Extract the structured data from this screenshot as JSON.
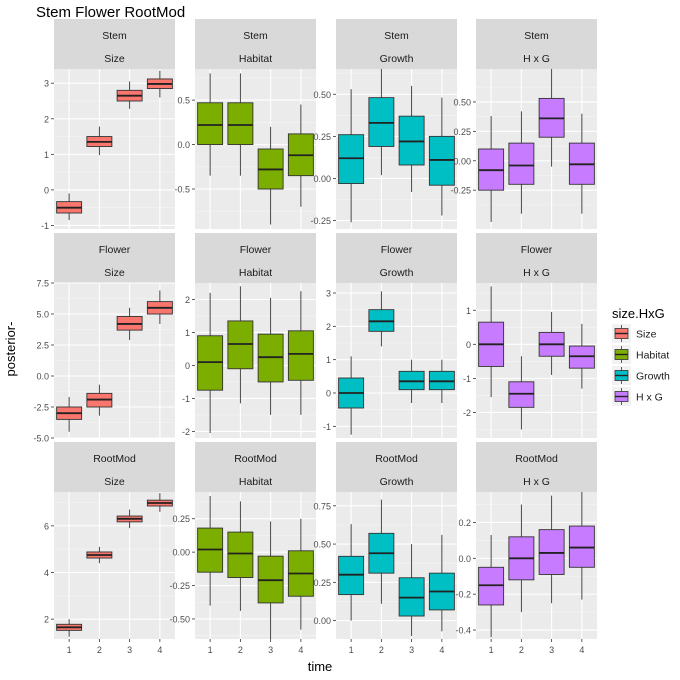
{
  "chart_data": {
    "type": "box",
    "title": "Stem Flower RootMod",
    "xlabel": "time",
    "ylabel": "posterior-",
    "x_categories": [
      "1",
      "2",
      "3",
      "4"
    ],
    "legend": {
      "title": "size.HxG",
      "position": "right",
      "entries": [
        {
          "label": "Size",
          "color": "#f8766d"
        },
        {
          "label": "Habitat",
          "color": "#7cae00"
        },
        {
          "label": "Growth",
          "color": "#00bfc4"
        },
        {
          "label": "H x G",
          "color": "#c77cff"
        }
      ]
    },
    "rows": [
      {
        "name": "Stem",
        "panels": [
          {
            "name": "Size",
            "ylim": [
              -1.1,
              3.4
            ],
            "yticks": [
              -1,
              0,
              1,
              2,
              3
            ],
            "yticklabels": [
              "-1",
              "0",
              "1",
              "2",
              "3"
            ],
            "boxes": [
              [
                -0.85,
                -0.65,
                -0.5,
                -0.33,
                -0.1
              ],
              [
                0.98,
                1.22,
                1.35,
                1.5,
                1.78
              ],
              [
                2.28,
                2.5,
                2.65,
                2.8,
                3.05
              ],
              [
                2.6,
                2.85,
                2.98,
                3.12,
                3.35
              ]
            ]
          },
          {
            "name": "Habitat",
            "ylim": [
              -0.95,
              0.85
            ],
            "yticks": [
              -0.5,
              0,
              0.5
            ],
            "yticklabels": [
              "-0.5",
              "0.0",
              "0.5"
            ],
            "boxes": [
              [
                -0.35,
                0.0,
                0.22,
                0.47,
                0.8
              ],
              [
                -0.35,
                0.0,
                0.22,
                0.47,
                0.8
              ],
              [
                -0.9,
                -0.5,
                -0.28,
                -0.05,
                0.2
              ],
              [
                -0.7,
                -0.35,
                -0.12,
                0.12,
                0.45
              ]
            ]
          },
          {
            "name": "Growth",
            "ylim": [
              -0.3,
              0.65
            ],
            "yticks": [
              -0.25,
              0,
              0.25,
              0.5
            ],
            "yticklabels": [
              "-0.25",
              "0.00",
              "0.25",
              "0.50"
            ],
            "boxes": [
              [
                -0.26,
                -0.03,
                0.12,
                0.26,
                0.53
              ],
              [
                0.02,
                0.19,
                0.33,
                0.48,
                0.65
              ],
              [
                -0.08,
                0.08,
                0.22,
                0.37,
                0.55
              ],
              [
                -0.22,
                -0.04,
                0.11,
                0.25,
                0.48
              ]
            ]
          },
          {
            "name": "H x G",
            "ylim": [
              -0.58,
              0.78
            ],
            "yticks": [
              -0.25,
              0,
              0.25,
              0.5
            ],
            "yticklabels": [
              "-0.25",
              "0.00",
              "0.25",
              "0.50"
            ],
            "boxes": [
              [
                -0.52,
                -0.25,
                -0.08,
                0.1,
                0.38
              ],
              [
                -0.45,
                -0.2,
                -0.04,
                0.15,
                0.42
              ],
              [
                -0.05,
                0.2,
                0.36,
                0.53,
                0.78
              ],
              [
                -0.45,
                -0.2,
                -0.03,
                0.15,
                0.4
              ]
            ]
          }
        ]
      },
      {
        "name": "Flower",
        "panels": [
          {
            "name": "Size",
            "ylim": [
              -5.0,
              7.5
            ],
            "yticks": [
              -5,
              -2.5,
              0,
              2.5,
              5,
              7.5
            ],
            "yticklabels": [
              "-5.0",
              "-2.5",
              "0.0",
              "2.5",
              "5.0",
              "7.5"
            ],
            "boxes": [
              [
                -4.5,
                -3.5,
                -3.0,
                -2.5,
                -1.7
              ],
              [
                -3.2,
                -2.5,
                -1.9,
                -1.4,
                -0.7
              ],
              [
                2.9,
                3.7,
                4.2,
                4.8,
                5.5
              ],
              [
                4.2,
                5.0,
                5.5,
                6.0,
                6.9
              ]
            ]
          },
          {
            "name": "Habitat",
            "ylim": [
              -2.2,
              2.5
            ],
            "yticks": [
              -2,
              -1,
              0,
              1,
              2
            ],
            "yticklabels": [
              "-2",
              "-1",
              "0",
              "1",
              "2"
            ],
            "boxes": [
              [
                -2.05,
                -0.75,
                0.1,
                0.9,
                2.2
              ],
              [
                -1.15,
                -0.1,
                0.65,
                1.35,
                2.4
              ],
              [
                -1.5,
                -0.5,
                0.25,
                0.95,
                2.05
              ],
              [
                -1.5,
                -0.45,
                0.35,
                1.05,
                2.25
              ]
            ]
          },
          {
            "name": "Growth",
            "ylim": [
              -1.35,
              3.3
            ],
            "yticks": [
              -1,
              0,
              1,
              2,
              3
            ],
            "yticklabels": [
              "-1",
              "0",
              "1",
              "2",
              "3"
            ],
            "boxes": [
              [
                -1.25,
                -0.45,
                0.0,
                0.45,
                1.1
              ],
              [
                1.4,
                1.85,
                2.15,
                2.5,
                3.05
              ],
              [
                -0.3,
                0.1,
                0.35,
                0.65,
                1.0
              ],
              [
                -0.3,
                0.1,
                0.35,
                0.65,
                1.0
              ]
            ]
          },
          {
            "name": "H x G",
            "ylim": [
              -2.75,
              1.8
            ],
            "yticks": [
              -2,
              -1,
              0,
              1
            ],
            "yticklabels": [
              "-2",
              "-1",
              "0",
              "1"
            ],
            "boxes": [
              [
                -1.55,
                -0.65,
                0.0,
                0.65,
                1.7
              ],
              [
                -2.5,
                -1.85,
                -1.45,
                -1.1,
                -0.35
              ],
              [
                -0.9,
                -0.35,
                0.0,
                0.35,
                0.95
              ],
              [
                -1.3,
                -0.7,
                -0.35,
                -0.05,
                0.6
              ]
            ]
          }
        ]
      },
      {
        "name": "RootMod",
        "panels": [
          {
            "name": "Size",
            "ylim": [
              1.15,
              7.45
            ],
            "yticks": [
              2,
              4,
              6
            ],
            "yticklabels": [
              "2",
              "4",
              "6"
            ],
            "boxes": [
              [
                1.25,
                1.52,
                1.65,
                1.78,
                2.0
              ],
              [
                4.4,
                4.62,
                4.75,
                4.88,
                5.1
              ],
              [
                5.9,
                6.17,
                6.3,
                6.42,
                6.7
              ],
              [
                6.6,
                6.85,
                6.98,
                7.1,
                7.4
              ]
            ]
          },
          {
            "name": "Habitat",
            "ylim": [
              -0.65,
              0.45
            ],
            "yticks": [
              -0.5,
              -0.25,
              0,
              0.25
            ],
            "yticklabels": [
              "-0.50",
              "-0.25",
              "0.00",
              "0.25"
            ],
            "boxes": [
              [
                -0.4,
                -0.15,
                0.02,
                0.18,
                0.42
              ],
              [
                -0.44,
                -0.19,
                -0.01,
                0.15,
                0.38
              ],
              [
                -0.65,
                -0.38,
                -0.21,
                -0.03,
                0.23
              ],
              [
                -0.58,
                -0.33,
                -0.16,
                0.01,
                0.25
              ]
            ]
          },
          {
            "name": "Growth",
            "ylim": [
              -0.12,
              0.84
            ],
            "yticks": [
              0,
              0.25,
              0.5,
              0.75
            ],
            "yticklabels": [
              "0.00",
              "0.25",
              "0.50",
              "0.75"
            ],
            "boxes": [
              [
                0.0,
                0.17,
                0.3,
                0.42,
                0.63
              ],
              [
                0.11,
                0.31,
                0.44,
                0.57,
                0.79
              ],
              [
                -0.1,
                0.03,
                0.15,
                0.28,
                0.5
              ],
              [
                -0.07,
                0.07,
                0.19,
                0.31,
                0.56
              ]
            ]
          },
          {
            "name": "H x G",
            "ylim": [
              -0.45,
              0.37
            ],
            "yticks": [
              -0.4,
              -0.2,
              0,
              0.2
            ],
            "yticklabels": [
              "-0.4",
              "-0.2",
              "0.0",
              "0.2"
            ],
            "boxes": [
              [
                -0.44,
                -0.26,
                -0.15,
                -0.05,
                0.13
              ],
              [
                -0.3,
                -0.12,
                0.0,
                0.12,
                0.3
              ],
              [
                -0.25,
                -0.09,
                0.03,
                0.16,
                0.35
              ],
              [
                -0.23,
                -0.05,
                0.06,
                0.18,
                0.37
              ]
            ]
          }
        ]
      }
    ]
  }
}
